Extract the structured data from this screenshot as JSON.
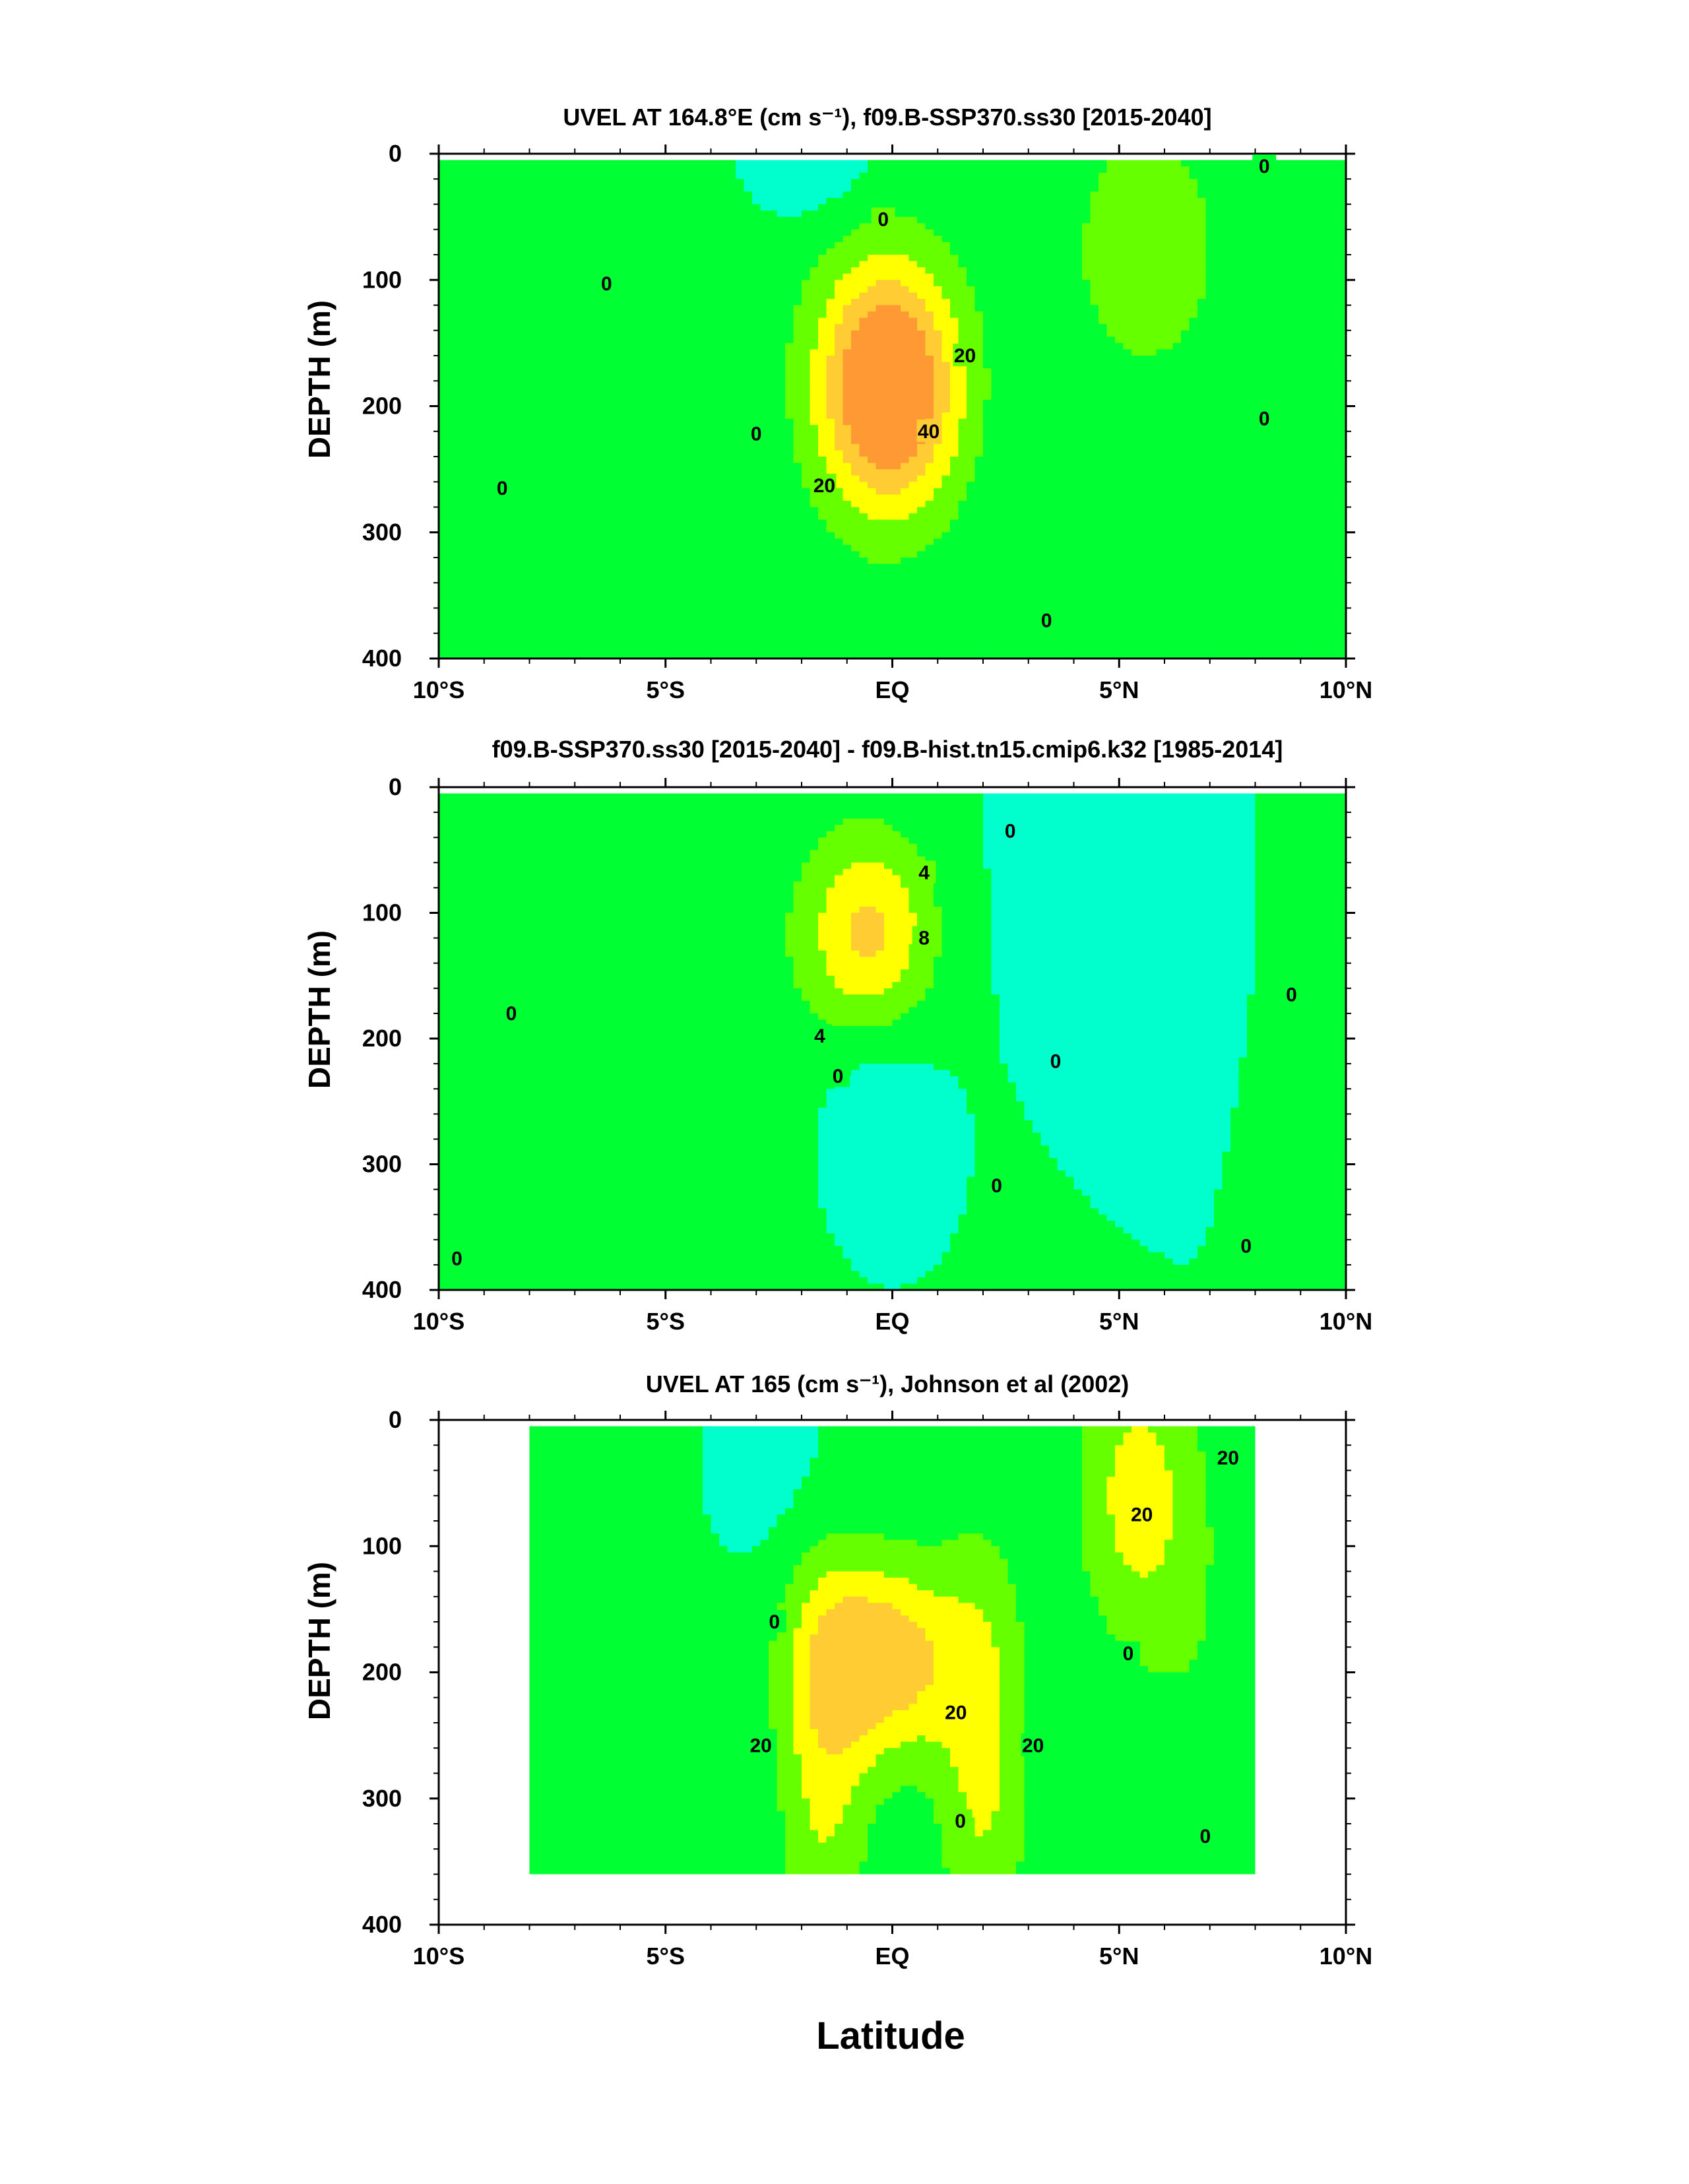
{
  "figure": {
    "xlabel": "Latitude"
  },
  "chart_data": [
    {
      "type": "heatmap",
      "title": "UVEL AT 164.8°E (cm s⁻¹), f09.B-SSP370.ss30 [2015-2040]",
      "ylabel": "DEPTH (m)",
      "xlabel": "Latitude",
      "xlim": [
        -10,
        10
      ],
      "ylim": [
        400,
        0
      ],
      "x_ticks": [
        "10°S",
        "5°S",
        "EQ",
        "5°N",
        "10°N"
      ],
      "y_ticks": [
        "0",
        "100",
        "200",
        "300",
        "400"
      ],
      "background_level_color": "#00ffcc",
      "features": [
        {
          "x": -7.5,
          "y": 200,
          "sx": 1.9,
          "sy": 130,
          "value": 6,
          "color": "#66ff00"
        },
        {
          "x": -5.0,
          "y": 60,
          "sx": 1.6,
          "sy": 90,
          "value": 4,
          "color": "#66ff00"
        },
        {
          "x": -2.0,
          "y": 10,
          "sx": 1.1,
          "sy": 30,
          "value": -10,
          "color": "#33ccff"
        },
        {
          "x": -0.1,
          "y": 185,
          "sx": 1.1,
          "sy": 70,
          "value": 58,
          "color": "#ff9933"
        },
        {
          "x": 5.6,
          "y": 75,
          "sx": 1.3,
          "sy": 80,
          "value": 14,
          "color": "#66ff00"
        },
        {
          "x": 8.8,
          "y": 230,
          "sx": 0.6,
          "sy": 220,
          "value": 4,
          "color": "#66ff00"
        }
      ],
      "contour_labels": [
        {
          "x": -6.3,
          "y": 103,
          "text": "0"
        },
        {
          "x": -8.6,
          "y": 265,
          "text": "0"
        },
        {
          "x": -3.0,
          "y": 222,
          "text": "0"
        },
        {
          "x": -0.2,
          "y": 52,
          "text": "0"
        },
        {
          "x": 1.6,
          "y": 160,
          "text": "20"
        },
        {
          "x": 0.8,
          "y": 220,
          "text": "40"
        },
        {
          "x": -1.5,
          "y": 263,
          "text": "20"
        },
        {
          "x": 3.4,
          "y": 370,
          "text": "0"
        },
        {
          "x": 8.2,
          "y": 10,
          "text": "0"
        },
        {
          "x": 8.2,
          "y": 210,
          "text": "0"
        }
      ],
      "levels": [
        0,
        10,
        20,
        30,
        40,
        50,
        60
      ],
      "colors": [
        "#00ffcc",
        "#00ff33",
        "#66ff00",
        "#ffff00",
        "#ffcc33",
        "#ff9933"
      ]
    },
    {
      "type": "heatmap",
      "title": "f09.B-SSP370.ss30 [2015-2040] - f09.B-hist.tn15.cmip6.k32 [1985-2014]",
      "ylabel": "DEPTH (m)",
      "xlabel": "Latitude",
      "xlim": [
        -10,
        10
      ],
      "ylim": [
        400,
        0
      ],
      "x_ticks": [
        "10°S",
        "5°S",
        "EQ",
        "5°N",
        "10°N"
      ],
      "y_ticks": [
        "0",
        "100",
        "200",
        "300",
        "400"
      ],
      "features": [
        {
          "x": -4.0,
          "y": 200,
          "sx": 3.2,
          "sy": 250,
          "value": 2,
          "color": "#00ff33"
        },
        {
          "x": -0.5,
          "y": 115,
          "sx": 1.0,
          "sy": 55,
          "value": 12,
          "color": "#ff9933"
        },
        {
          "x": -0.3,
          "y": 280,
          "sx": 0.9,
          "sy": 60,
          "value": -5,
          "color": "#00ccff"
        },
        {
          "x": 5.0,
          "y": 80,
          "sx": 1.6,
          "sy": 90,
          "value": -3,
          "color": "#00ffff"
        },
        {
          "x": 9.2,
          "y": 200,
          "sx": 0.7,
          "sy": 240,
          "value": 2,
          "color": "#00ff33"
        }
      ],
      "contour_labels": [
        {
          "x": -8.4,
          "y": 180,
          "text": "0"
        },
        {
          "x": -9.6,
          "y": 375,
          "text": "0"
        },
        {
          "x": 0.7,
          "y": 68,
          "text": "4"
        },
        {
          "x": 0.7,
          "y": 120,
          "text": "8"
        },
        {
          "x": -1.6,
          "y": 198,
          "text": "4"
        },
        {
          "x": -1.2,
          "y": 230,
          "text": "0"
        },
        {
          "x": 2.3,
          "y": 317,
          "text": "0"
        },
        {
          "x": 2.6,
          "y": 35,
          "text": "0"
        },
        {
          "x": 3.6,
          "y": 218,
          "text": "0"
        },
        {
          "x": 8.8,
          "y": 165,
          "text": "0"
        },
        {
          "x": 7.8,
          "y": 365,
          "text": "0"
        }
      ],
      "levels": [
        -4,
        0,
        4,
        8,
        12
      ],
      "colors": [
        "#00ffff",
        "#00ffcc",
        "#00ff33",
        "#66ff00",
        "#ffff00",
        "#ffcc33",
        "#ff9933"
      ]
    },
    {
      "type": "heatmap",
      "title": "UVEL AT 165 (cm s⁻¹), Johnson et al (2002)",
      "ylabel": "DEPTH (m)",
      "xlabel": "Latitude",
      "xlim": [
        -10,
        10
      ],
      "ylim": [
        400,
        0
      ],
      "x_ticks": [
        "10°S",
        "5°S",
        "EQ",
        "5°N",
        "10°N"
      ],
      "y_ticks": [
        "0",
        "100",
        "200",
        "300",
        "400"
      ],
      "data_extent": {
        "xmin": -8,
        "xmax": 8,
        "ymin": 5,
        "ymax": 360
      },
      "features": [
        {
          "x": -0.2,
          "y": 190,
          "sx": 1.2,
          "sy": 55,
          "value": 36,
          "color": "#ffcc33"
        },
        {
          "x": -1.5,
          "y": 270,
          "sx": 0.7,
          "sy": 120,
          "value": 20,
          "color": "#ffff00"
        },
        {
          "x": 2.0,
          "y": 270,
          "sx": 0.7,
          "sy": 120,
          "value": 20,
          "color": "#ffff00"
        },
        {
          "x": 5.4,
          "y": 60,
          "sx": 0.9,
          "sy": 80,
          "value": 22,
          "color": "#ffff00"
        },
        {
          "x": 6.8,
          "y": 220,
          "sx": 1.0,
          "sy": 140,
          "value": 6,
          "color": "#00ff33"
        },
        {
          "x": -7.0,
          "y": 80,
          "sx": 1.0,
          "sy": 90,
          "value": 6,
          "color": "#00ff33"
        },
        {
          "x": -2.5,
          "y": 40,
          "sx": 1.2,
          "sy": 60,
          "value": -6,
          "color": "#00ffff"
        }
      ],
      "contour_labels": [
        {
          "x": -2.6,
          "y": 160,
          "text": "0"
        },
        {
          "x": -2.9,
          "y": 258,
          "text": "20"
        },
        {
          "x": 1.4,
          "y": 232,
          "text": "20"
        },
        {
          "x": 3.1,
          "y": 258,
          "text": "20"
        },
        {
          "x": 1.5,
          "y": 318,
          "text": "0"
        },
        {
          "x": 5.2,
          "y": 185,
          "text": "0"
        },
        {
          "x": 6.9,
          "y": 330,
          "text": "0"
        },
        {
          "x": 5.5,
          "y": 75,
          "text": "20"
        },
        {
          "x": 7.4,
          "y": 30,
          "text": "20"
        }
      ],
      "levels": [
        -10,
        0,
        10,
        20,
        30,
        40
      ],
      "colors": [
        "#00ffff",
        "#00ffcc",
        "#00ff33",
        "#66ff00",
        "#ffff00",
        "#ffcc33"
      ]
    }
  ]
}
